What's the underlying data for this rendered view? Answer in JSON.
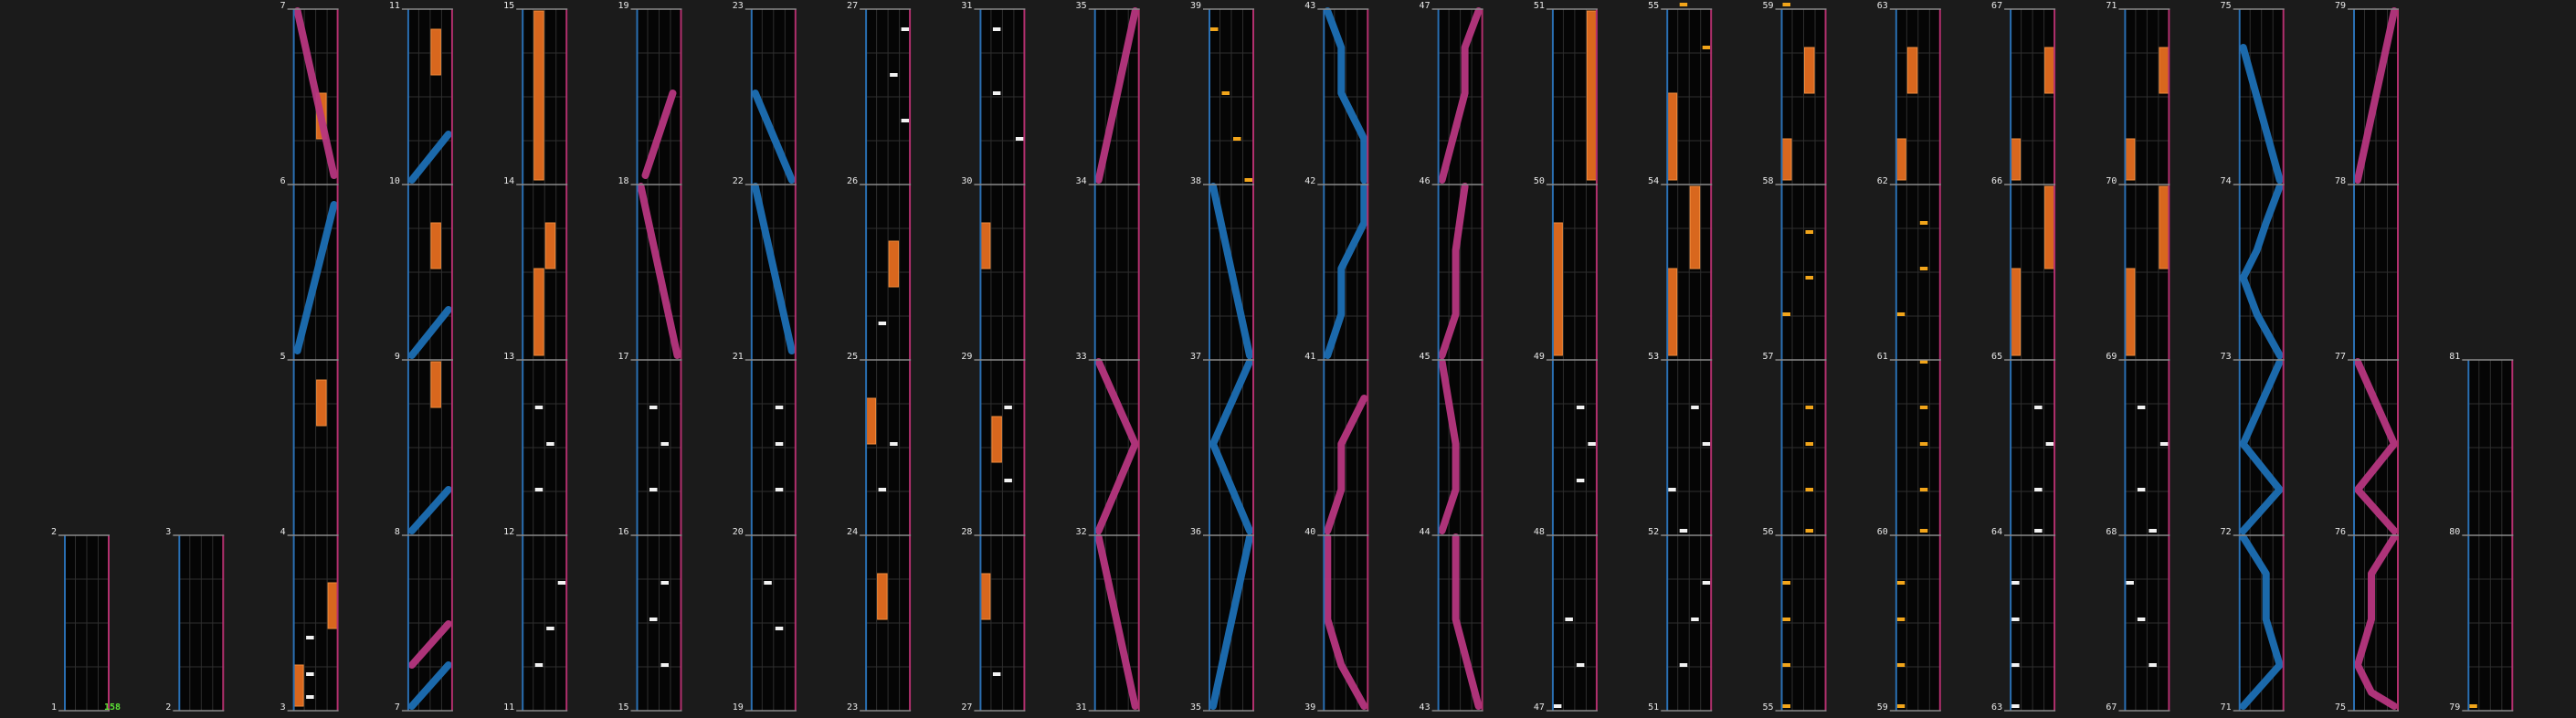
{
  "title": "",
  "colors": {
    "background": "#1b1b1b",
    "lane_bg": "#050505",
    "grid": "#2e2e2e",
    "measure_line": "#8a8a8a",
    "left_edge": "#2a6fb2",
    "right_edge": "#b2306e",
    "label": "#e8e8e8",
    "blue_laser": "#1c6fb4",
    "pink_laser": "#b6367f",
    "hold": "#d8671e",
    "fx_chip": "#f2a51a",
    "chip": "#f2f2f2",
    "combo": "#5ce035"
  },
  "combo_label": "158",
  "columns": [
    {
      "labels": [
        "1",
        "2"
      ]
    },
    {
      "labels": [
        "2",
        "3"
      ]
    },
    {
      "labels": [
        "3",
        "4",
        "5",
        "6",
        "7"
      ]
    },
    {
      "labels": [
        "7",
        "8",
        "9",
        "10",
        "11"
      ]
    },
    {
      "labels": [
        "11",
        "12",
        "13",
        "14",
        "15"
      ]
    },
    {
      "labels": [
        "15",
        "16",
        "17",
        "18",
        "19"
      ]
    },
    {
      "labels": [
        "19",
        "20",
        "21",
        "22",
        "23"
      ]
    },
    {
      "labels": [
        "23",
        "24",
        "25",
        "26",
        "27"
      ]
    },
    {
      "labels": [
        "27",
        "28",
        "29",
        "30",
        "31"
      ]
    },
    {
      "labels": [
        "31",
        "32",
        "33",
        "34",
        "35"
      ]
    },
    {
      "labels": [
        "35",
        "36",
        "37",
        "38",
        "39"
      ]
    },
    {
      "labels": [
        "39",
        "40",
        "41",
        "42",
        "43"
      ]
    },
    {
      "labels": [
        "43",
        "44",
        "45",
        "46",
        "47"
      ]
    },
    {
      "labels": [
        "47",
        "48",
        "49",
        "50",
        "51"
      ]
    },
    {
      "labels": [
        "51",
        "52",
        "53",
        "54",
        "55"
      ]
    },
    {
      "labels": [
        "55",
        "56",
        "57",
        "58",
        "59"
      ]
    },
    {
      "labels": [
        "59",
        "60",
        "61",
        "62",
        "63"
      ]
    },
    {
      "labels": [
        "63",
        "64",
        "65",
        "66",
        "67"
      ]
    },
    {
      "labels": [
        "67",
        "68",
        "69",
        "70",
        "71"
      ]
    },
    {
      "labels": [
        "71",
        "72",
        "73",
        "74",
        "75"
      ]
    },
    {
      "labels": [
        "75",
        "76",
        "77",
        "78",
        "79"
      ]
    },
    {
      "labels": [
        "79",
        "80",
        "81"
      ]
    }
  ]
}
